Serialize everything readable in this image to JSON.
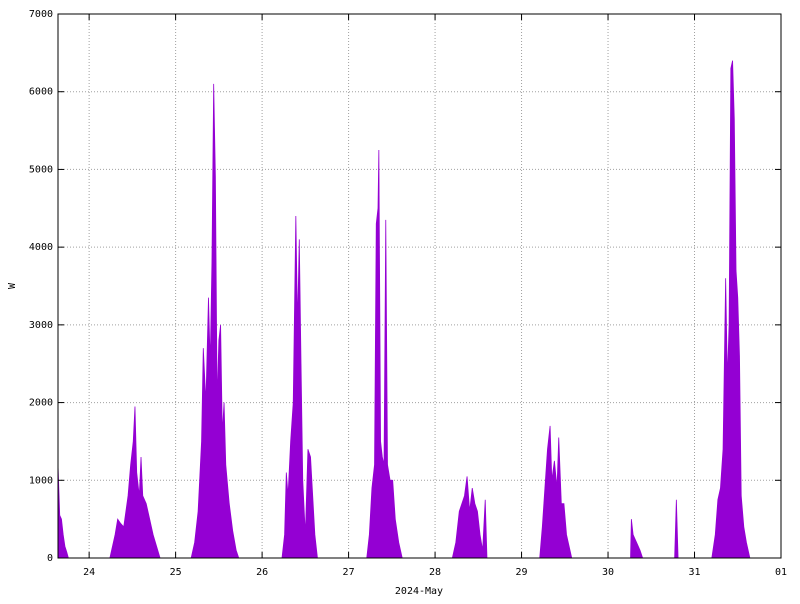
{
  "chart_data": {
    "type": "area",
    "color": "#9400d3",
    "grid": true,
    "xlabel": "2024-May",
    "ylabel": "W",
    "xlim": [
      23.64,
      32
    ],
    "ylim": [
      0,
      7000
    ],
    "xticks": [
      24,
      25,
      26,
      27,
      28,
      29,
      30,
      31,
      {
        "value": 32,
        "label": "01"
      }
    ],
    "yticks": [
      0,
      1000,
      2000,
      3000,
      4000,
      5000,
      6000,
      7000
    ],
    "x": [
      23.64,
      23.66,
      23.68,
      23.7,
      23.72,
      23.74,
      23.76,
      24.24,
      24.27,
      24.3,
      24.33,
      24.36,
      24.4,
      24.45,
      24.48,
      24.51,
      24.53,
      24.55,
      24.58,
      24.6,
      24.62,
      24.66,
      24.7,
      24.74,
      24.78,
      24.82,
      25.18,
      25.22,
      25.26,
      25.3,
      25.32,
      25.35,
      25.38,
      25.4,
      25.42,
      25.44,
      25.46,
      25.48,
      25.5,
      25.52,
      25.54,
      25.56,
      25.58,
      25.62,
      25.66,
      25.7,
      25.73,
      26.23,
      26.26,
      26.28,
      26.3,
      26.33,
      26.36,
      26.39,
      26.41,
      26.43,
      26.45,
      26.47,
      26.5,
      26.53,
      26.56,
      26.58,
      26.61,
      26.64,
      27.21,
      27.24,
      27.27,
      27.3,
      27.32,
      27.34,
      27.35,
      27.37,
      27.39,
      27.41,
      27.43,
      27.45,
      27.48,
      27.51,
      27.54,
      27.58,
      27.62,
      28.2,
      28.24,
      28.28,
      28.31,
      28.34,
      28.37,
      28.4,
      28.43,
      28.46,
      28.49,
      28.52,
      28.55,
      28.58,
      28.6,
      29.21,
      29.24,
      29.27,
      29.3,
      29.33,
      29.35,
      29.38,
      29.41,
      29.43,
      29.46,
      29.49,
      29.52,
      29.56,
      29.58,
      30.26,
      30.27,
      30.29,
      30.33,
      30.37,
      30.4,
      30.77,
      30.79,
      30.81,
      31.2,
      31.24,
      31.27,
      31.3,
      31.33,
      31.36,
      31.38,
      31.4,
      31.42,
      31.44,
      31.46,
      31.48,
      31.5,
      31.52,
      31.54,
      31.57,
      31.6,
      31.64
    ],
    "values": [
      1200,
      550,
      500,
      300,
      150,
      80,
      0,
      0,
      150,
      300,
      500,
      450,
      400,
      800,
      1200,
      1500,
      1950,
      1100,
      800,
      1300,
      800,
      700,
      500,
      300,
      150,
      0,
      0,
      200,
      600,
      1500,
      2700,
      2000,
      3350,
      2500,
      3800,
      6100,
      4900,
      2000,
      2800,
      3000,
      1600,
      2000,
      1200,
      700,
      350,
      100,
      0,
      0,
      300,
      1100,
      800,
      1500,
      2000,
      4400,
      3000,
      4100,
      2500,
      1000,
      300,
      1400,
      1300,
      900,
      300,
      0,
      0,
      300,
      900,
      1200,
      4300,
      4500,
      5250,
      1500,
      1300,
      1200,
      4350,
      1200,
      1000,
      1000,
      500,
      200,
      0,
      0,
      200,
      600,
      700,
      800,
      1050,
      600,
      900,
      700,
      600,
      300,
      100,
      750,
      0,
      0,
      400,
      900,
      1400,
      1700,
      1000,
      1250,
      900,
      1550,
      700,
      700,
      300,
      100,
      0,
      0,
      500,
      300,
      200,
      100,
      0,
      0,
      750,
      0,
      0,
      300,
      750,
      900,
      1400,
      3600,
      2300,
      3000,
      6300,
      6400,
      5650,
      3700,
      3350,
      2600,
      800,
      400,
      200,
      0
    ]
  }
}
